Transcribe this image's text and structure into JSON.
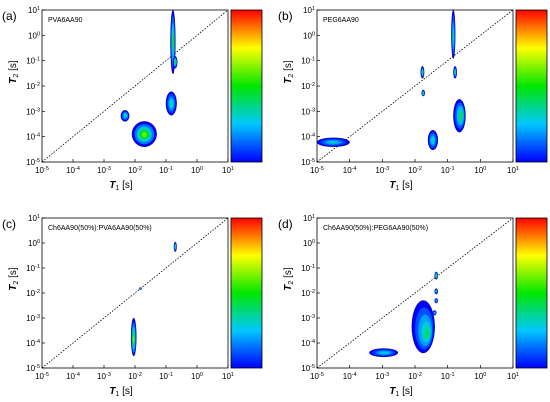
{
  "chart_data": [
    {
      "type": "heatmap",
      "panel": "(a)",
      "label": "PVA6AA90",
      "xlabel": "T1 [s]",
      "ylabel": "T2 [s]",
      "xscale": "log",
      "yscale": "log",
      "xlim": [
        1e-05,
        10
      ],
      "ylim": [
        1e-05,
        10
      ],
      "xticks": [
        "10-5",
        "10-4",
        "10-3",
        "10-2",
        "10-1",
        "100",
        "101"
      ],
      "yticks": [
        "10-5",
        "10-4",
        "10-3",
        "10-2",
        "10-1",
        "100",
        "101"
      ],
      "diagonal": "T1 = T2 (dotted)",
      "colorbar": "red (high) to blue (low)",
      "peaks": [
        {
          "t1": 0.02,
          "t2": 0.00012,
          "t1_range": [
            0.008,
            0.05
          ],
          "t2_range": [
            4e-05,
            0.0004
          ],
          "intensity": 0.6
        },
        {
          "t1": 0.005,
          "t2": 0.0007,
          "t1_range": [
            0.0035,
            0.0065
          ],
          "t2_range": [
            0.0004,
            0.0011
          ],
          "intensity": 0.35
        },
        {
          "t1": 0.17,
          "t2": 0.6,
          "t1_range": [
            0.14,
            0.2
          ],
          "t2_range": [
            0.03,
            10
          ],
          "intensity": 0.45
        },
        {
          "t1": 0.2,
          "t2": 0.09,
          "t1_range": [
            0.17,
            0.23
          ],
          "t2_range": [
            0.05,
            0.15
          ],
          "intensity": 0.5
        },
        {
          "t1": 0.15,
          "t2": 0.002,
          "t1_range": [
            0.1,
            0.22
          ],
          "t2_range": [
            0.0007,
            0.006
          ],
          "intensity": 0.35
        }
      ]
    },
    {
      "type": "heatmap",
      "panel": "(b)",
      "label": "PEG6AA90",
      "xlabel": "T1 [s]",
      "ylabel": "T2 [s]",
      "xscale": "log",
      "yscale": "log",
      "xlim": [
        1e-05,
        10
      ],
      "ylim": [
        1e-05,
        10
      ],
      "xticks": [
        "10-5",
        "10-4",
        "10-3",
        "10-2",
        "10-1",
        "100",
        "101"
      ],
      "yticks": [
        "10-5",
        "10-4",
        "10-3",
        "10-2",
        "10-1",
        "100",
        "101"
      ],
      "diagonal": "T1 = T2 (dotted)",
      "colorbar": "red (high) to blue (low)",
      "peaks": [
        {
          "t1": 3e-05,
          "t2": 6e-05,
          "t1_range": [
            1e-05,
            0.0001
          ],
          "t2_range": [
            4e-05,
            9e-05
          ],
          "intensity": 0.3
        },
        {
          "t1": 0.035,
          "t2": 7e-05,
          "t1_range": [
            0.025,
            0.05
          ],
          "t2_range": [
            3e-05,
            0.00018
          ],
          "intensity": 0.35
        },
        {
          "t1": 0.017,
          "t2": 0.035,
          "t1_range": [
            0.015,
            0.019
          ],
          "t2_range": [
            0.02,
            0.06
          ],
          "intensity": 0.4
        },
        {
          "t1": 0.018,
          "t2": 0.005,
          "t1_range": [
            0.016,
            0.02
          ],
          "t2_range": [
            0.004,
            0.007
          ],
          "intensity": 0.4
        },
        {
          "t1": 0.15,
          "t2": 0.8,
          "t1_range": [
            0.13,
            0.17
          ],
          "t2_range": [
            0.12,
            10
          ],
          "intensity": 0.35
        },
        {
          "t1": 0.17,
          "t2": 0.035,
          "t1_range": [
            0.15,
            0.19
          ],
          "t2_range": [
            0.02,
            0.06
          ],
          "intensity": 0.35
        },
        {
          "t1": 0.27,
          "t2": 0.0007,
          "t1_range": [
            0.15,
            0.35
          ],
          "t2_range": [
            0.00015,
            0.003
          ],
          "intensity": 0.45
        }
      ]
    },
    {
      "type": "heatmap",
      "panel": "(c)",
      "label": "Ch6AA90(50%):PVA6AA90(50%)",
      "xlabel": "T1 [s]",
      "ylabel": "T2 [s]",
      "xscale": "log",
      "yscale": "log",
      "xlim": [
        1e-05,
        10
      ],
      "ylim": [
        1e-05,
        10
      ],
      "xticks": [
        "10-5",
        "10-4",
        "10-3",
        "10-2",
        "10-1",
        "100",
        "101"
      ],
      "yticks": [
        "10-5",
        "10-4",
        "10-3",
        "10-2",
        "10-1",
        "100",
        "101"
      ],
      "diagonal": "T1 = T2 (dotted)",
      "colorbar": "red (high) to blue (low)",
      "peaks": [
        {
          "t1": 0.009,
          "t2": 0.00013,
          "t1_range": [
            0.0075,
            0.011
          ],
          "t2_range": [
            3e-05,
            0.001
          ],
          "intensity": 0.6
        },
        {
          "t1": 0.2,
          "t2": 0.7,
          "t1_range": [
            0.18,
            0.22
          ],
          "t2_range": [
            0.45,
            1.1
          ],
          "intensity": 0.35
        },
        {
          "t1": 0.015,
          "t2": 0.015,
          "t1_range": [
            0.014,
            0.016
          ],
          "t2_range": [
            0.014,
            0.016
          ],
          "intensity": 0.2
        }
      ]
    },
    {
      "type": "heatmap",
      "panel": "(d)",
      "label": "Ch6AA90(50%):PEG6AA90(50%)",
      "xlabel": "T1 [s]",
      "ylabel": "T2 [s]",
      "xscale": "log",
      "yscale": "log",
      "xlim": [
        1e-05,
        10
      ],
      "ylim": [
        1e-05,
        10
      ],
      "xticks": [
        "10-5",
        "10-4",
        "10-3",
        "10-2",
        "10-1",
        "100",
        "101"
      ],
      "yticks": [
        "10-5",
        "10-4",
        "10-3",
        "10-2",
        "10-1",
        "100",
        "101"
      ],
      "diagonal": "T1 = T2 (dotted)",
      "colorbar": "red (high) to blue (low)",
      "peaks": [
        {
          "t1": 0.0012,
          "t2": 4e-05,
          "t1_range": [
            0.0004,
            0.003
          ],
          "t2_range": [
            2.8e-05,
            6e-05
          ],
          "intensity": 0.3
        },
        {
          "t1": 0.025,
          "t2": 0.0002,
          "t1_range": [
            0.008,
            0.04
          ],
          "t2_range": [
            4e-05,
            0.005
          ],
          "intensity": 0.4
        },
        {
          "t1": 0.045,
          "t2": 0.05,
          "t1_range": [
            0.04,
            0.05
          ],
          "t2_range": [
            0.035,
            0.07
          ],
          "intensity": 0.5
        },
        {
          "t1": 0.045,
          "t2": 0.012,
          "t1_range": [
            0.04,
            0.05
          ],
          "t2_range": [
            0.009,
            0.015
          ],
          "intensity": 0.3
        },
        {
          "t1": 0.045,
          "t2": 0.005,
          "t1_range": [
            0.04,
            0.05
          ],
          "t2_range": [
            0.004,
            0.006
          ],
          "intensity": 0.3
        },
        {
          "t1": 0.04,
          "t2": 0.0016,
          "t1_range": [
            0.035,
            0.045
          ],
          "t2_range": [
            0.0013,
            0.002
          ],
          "intensity": 0.3
        }
      ]
    }
  ]
}
